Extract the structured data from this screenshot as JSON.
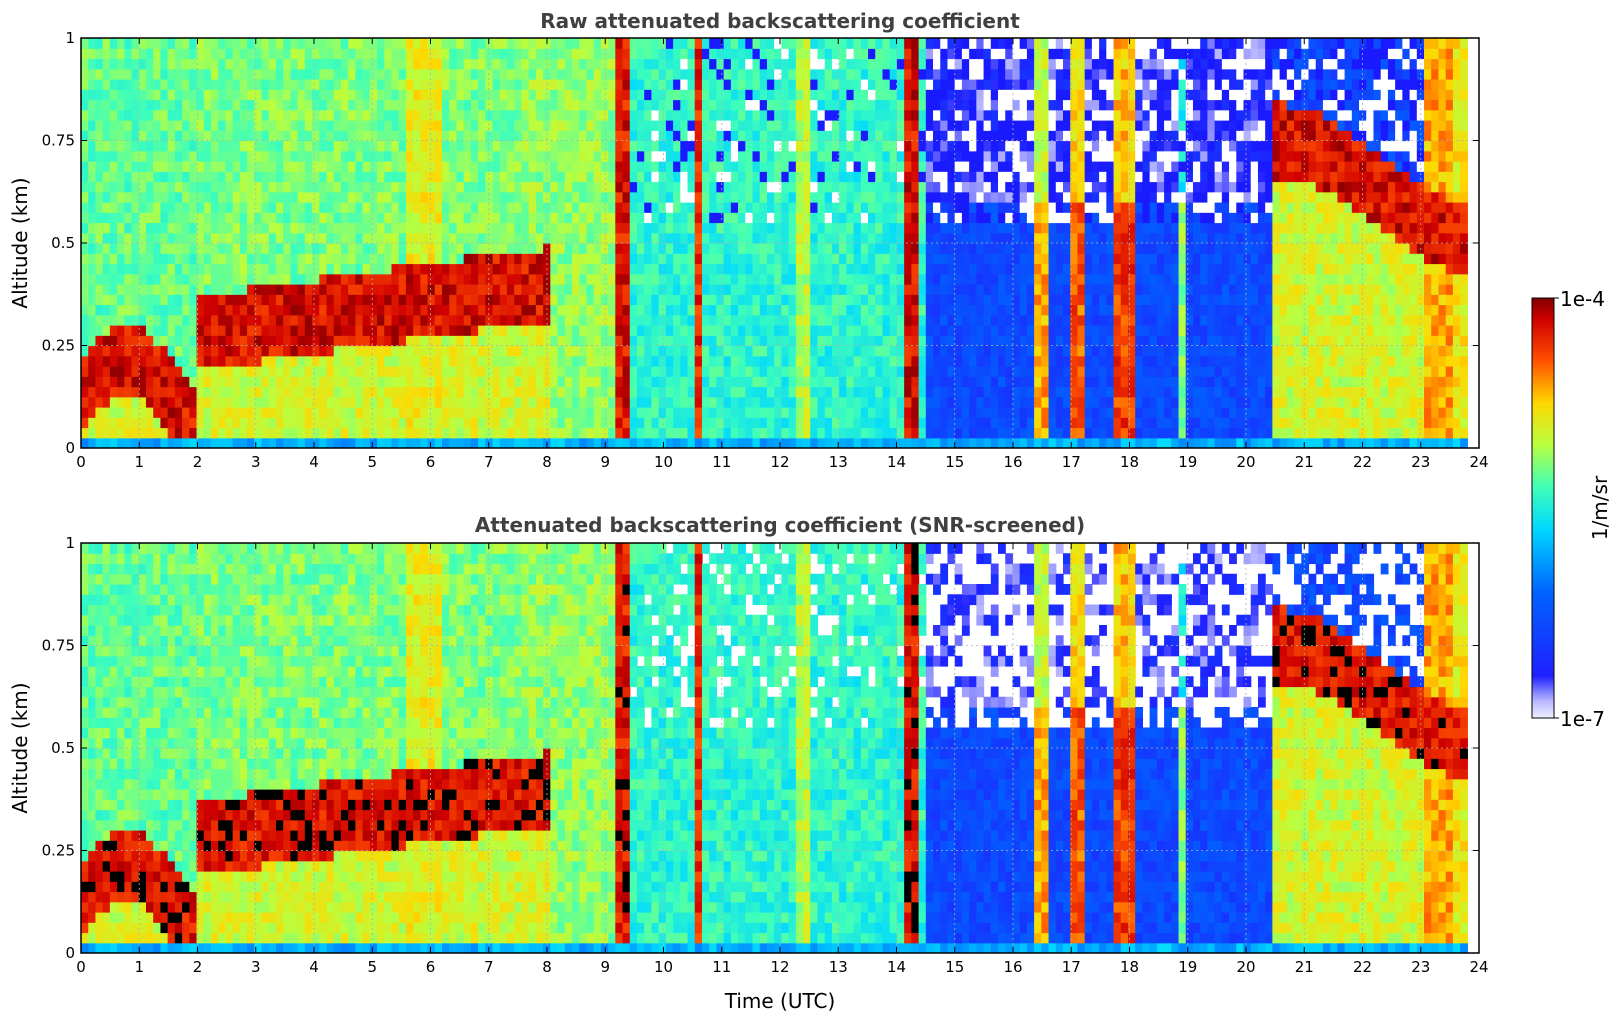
{
  "figure": {
    "colorbar": {
      "max_label": "1e-4",
      "min_label": "1e-7",
      "unit_label": "1/m/sr",
      "colormap": "jet"
    }
  },
  "chart_data": [
    {
      "type": "heatmap",
      "title": "Raw attenuated backscattering coefficient",
      "xlabel": "",
      "ylabel": "Altitude (km)",
      "xlim": [
        0,
        24
      ],
      "ylim": [
        0,
        1
      ],
      "x_ticks": [
        "0",
        "1",
        "2",
        "3",
        "4",
        "5",
        "6",
        "7",
        "8",
        "9",
        "10",
        "11",
        "12",
        "13",
        "14",
        "15",
        "16",
        "17",
        "18",
        "19",
        "20",
        "21",
        "22",
        "23",
        "24"
      ],
      "y_ticks": [
        "0",
        "0.25",
        "0.5",
        "0.75",
        "1"
      ],
      "grid": true,
      "screened": false
    },
    {
      "type": "heatmap",
      "title": "Attenuated backscattering coefficient (SNR-screened)",
      "xlabel": "Time (UTC)",
      "ylabel": "Altitude (km)",
      "xlim": [
        0,
        24
      ],
      "ylim": [
        0,
        1
      ],
      "x_ticks": [
        "0",
        "1",
        "2",
        "3",
        "4",
        "5",
        "6",
        "7",
        "8",
        "9",
        "10",
        "11",
        "12",
        "13",
        "14",
        "15",
        "16",
        "17",
        "18",
        "19",
        "20",
        "21",
        "22",
        "23",
        "24"
      ],
      "y_ticks": [
        "0",
        "0.25",
        "0.5",
        "0.75",
        "1"
      ],
      "grid": true,
      "screened": true
    }
  ]
}
